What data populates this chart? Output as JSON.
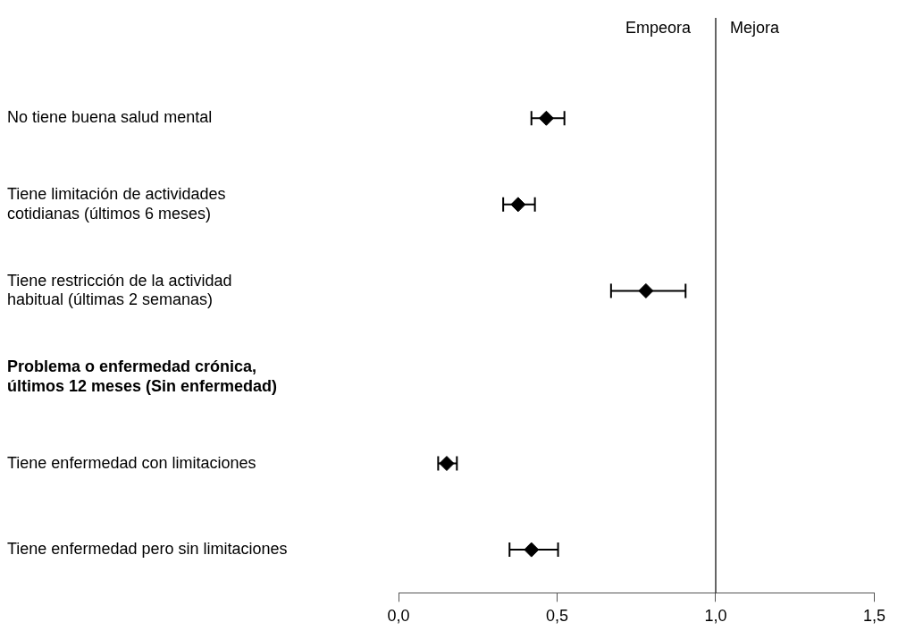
{
  "chart_data": {
    "type": "scatter",
    "orientation": "horizontal",
    "categories": [
      "No tiene buena salud mental",
      "Tiene limitación de actividades\ncotidianas (últimos 6 meses)",
      "Tiene restricción de la actividad\nhabitual (últimas 2 semanas)",
      "Problema o enfermedad crónica,\núltimos 12 meses (Sin enfermedad)",
      "Tiene enfermedad con limitaciones",
      "Tiene enfermedad pero sin limitaciones"
    ],
    "values": [
      0.466,
      0.377,
      0.78,
      null,
      0.152,
      0.419
    ],
    "errors": [
      [
        0.419,
        0.523
      ],
      [
        0.33,
        0.43
      ],
      [
        0.67,
        0.905
      ],
      null,
      [
        0.125,
        0.184
      ],
      [
        0.35,
        0.503
      ]
    ],
    "color": "#000000",
    "marker": "diamond",
    "xlim": [
      0,
      1.5
    ],
    "xticks": [
      {
        "value": 0,
        "label": "0,0"
      },
      {
        "value": 0.5,
        "label": "0,5"
      },
      {
        "value": 1,
        "label": "1,0"
      },
      {
        "value": 1.5,
        "label": "1,5"
      }
    ],
    "ref_lines": [
      {
        "axis": "x",
        "value": 1,
        "color": "#000000"
      }
    ],
    "annotations": [
      "Empeora",
      "Mejora"
    ],
    "grid": false,
    "legend": false
  }
}
